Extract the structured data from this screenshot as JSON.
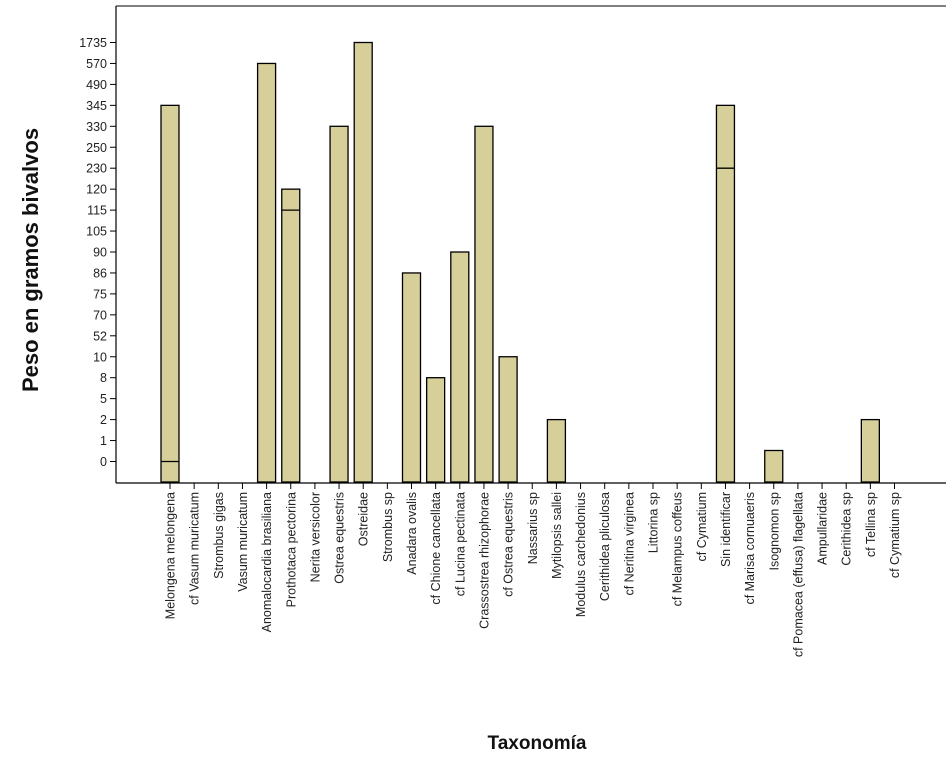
{
  "chart_data": {
    "type": "bar",
    "title": "",
    "xlabel": "Taxonomía",
    "ylabel": "Peso en gramos bivalvos",
    "y_axis_scale": "categorical",
    "y_ticks": [
      "0",
      "1",
      "2",
      "5",
      "8",
      "10",
      "52",
      "70",
      "75",
      "86",
      "90",
      "105",
      "115",
      "120",
      "230",
      "250",
      "330",
      "345",
      "490",
      "570",
      "1735"
    ],
    "categories": [
      "Melongena melongena",
      "cf Vasum muricatum",
      "Strombus gigas",
      "Vasum muricatum",
      "Anomalocardia brasiliana",
      "Prothotaca  pectorina",
      "Nerita versicolor",
      "Ostrea equestris",
      "Ostreidae",
      "Strombus sp",
      "Anadara ovalis",
      "cf Chione cancellata",
      "cf Lucina pectinata",
      "Crassostrea rhizophorae",
      "cf Ostrea equestris",
      "Nassarius sp",
      "Mytilopsis sallei",
      "Modulus carchedonius",
      "Cerithidea pliculosa",
      "cf Neritina virginea",
      "Littorina sp",
      "cf Melampus coffeus",
      "cf Cymatium",
      "Sin identificar",
      "cf Marisa cornuaeris",
      "Isognomon sp",
      "cf Pomacea (effusa) flagellata",
      "Ampullaridae",
      "Cerithidea sp",
      "cf Tellina sp",
      "cf Cymatium sp"
    ],
    "bars": [
      {
        "category": "Melongena melongena",
        "low": "0",
        "high": "345",
        "inner": "0"
      },
      {
        "category": "Anomalocardia brasiliana",
        "low": "0",
        "high": "570"
      },
      {
        "category": "Prothotaca  pectorina",
        "low": "0",
        "high": "120",
        "inner": "115"
      },
      {
        "category": "Ostrea equestris",
        "low": "0",
        "high": "330"
      },
      {
        "category": "Ostreidae",
        "low": "0",
        "high": "1735"
      },
      {
        "category": "Anadara ovalis",
        "low": "0",
        "high": "86"
      },
      {
        "category": "cf Chione cancellata",
        "low": "0",
        "high": "8"
      },
      {
        "category": "cf Lucina pectinata",
        "low": "0",
        "high": "90"
      },
      {
        "category": "Crassostrea rhizophorae",
        "low": "0",
        "high": "330"
      },
      {
        "category": "cf Ostrea equestris",
        "low": "0",
        "high": "10"
      },
      {
        "category": "Mytilopsis sallei",
        "low": "0",
        "high": "2"
      },
      {
        "category": "Sin identificar",
        "low": "0",
        "high": "345",
        "inner": "230"
      },
      {
        "category": "Isognomon sp",
        "low": "0",
        "high": "0"
      },
      {
        "category": "cf Tellina sp",
        "low": "0",
        "high": "2"
      }
    ],
    "bar_color": "#d6cf99",
    "bar_stroke": "#000000",
    "grid": false,
    "legend": "none"
  }
}
